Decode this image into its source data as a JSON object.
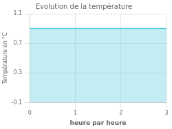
{
  "chart_data": {
    "type": "area",
    "title": "Evolution de la température",
    "x_label": "heure par heure",
    "y_label": "Température en °C",
    "x": [
      0,
      3
    ],
    "values": [
      0.9,
      0.9
    ],
    "color": "#55ccdd",
    "xlim": [
      0,
      3
    ],
    "ylim": [
      -0.1,
      1.1
    ],
    "xticks": [
      0,
      1,
      2,
      3
    ],
    "yticks": [
      -0.1,
      0.3,
      0.7,
      1.1
    ],
    "grid": true
  }
}
